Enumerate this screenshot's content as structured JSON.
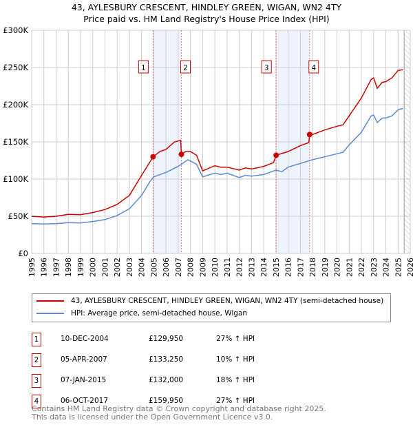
{
  "title": "43, AYLESBURY CRESCENT, HINDLEY GREEN, WIGAN, WN2 4TY",
  "subtitle": "Price paid vs. HM Land Registry's House Price Index (HPI)",
  "chart_data": {
    "type": "line",
    "title": "43, AYLESBURY CRESCENT, HINDLEY GREEN, WIGAN, WN2 4TY",
    "subtitle": "Price paid vs. HM Land Registry's House Price Index (HPI)",
    "xlim": [
      1995,
      2026
    ],
    "ylim": [
      0,
      300000
    ],
    "xticks": [
      "1995",
      "1996",
      "1997",
      "1998",
      "1999",
      "2000",
      "2001",
      "2002",
      "2003",
      "2004",
      "2005",
      "2006",
      "2007",
      "2008",
      "2009",
      "2010",
      "2011",
      "2012",
      "2013",
      "2014",
      "2015",
      "2016",
      "2017",
      "2018",
      "2019",
      "2020",
      "2021",
      "2022",
      "2023",
      "2024",
      "2025",
      "2026"
    ],
    "yticks": [
      {
        "v": 0,
        "l": "£0"
      },
      {
        "v": 50000,
        "l": "£50K"
      },
      {
        "v": 100000,
        "l": "£100K"
      },
      {
        "v": 150000,
        "l": "£150K"
      },
      {
        "v": 200000,
        "l": "£200K"
      },
      {
        "v": 250000,
        "l": "£250K"
      },
      {
        "v": 300000,
        "l": "£300K"
      }
    ],
    "grid": true,
    "shaded_ranges": [
      [
        2004.94,
        2007.26
      ],
      [
        2015.02,
        2017.76
      ]
    ],
    "forecast_from": 2025.5,
    "series": [
      {
        "name": "43, AYLESBURY CRESCENT, HINDLEY GREEN, WIGAN, WN2 4TY (semi-detached house)",
        "color": "#cc0000",
        "x": [
          1995,
          1996,
          1997,
          1998,
          1999,
          2000,
          2001,
          2002,
          2003,
          2004,
          2004.94,
          2005.5,
          2006,
          2006.7,
          2007.2,
          2007.26,
          2007.6,
          2008,
          2008.5,
          2009,
          2010,
          2010.5,
          2011,
          2012,
          2012.5,
          2013,
          2014,
          2014.8,
          2015.02,
          2016,
          2017,
          2017.7,
          2017.76,
          2018,
          2019,
          2020,
          2020.5,
          2021,
          2022,
          2022.8,
          2023,
          2023.3,
          2023.7,
          2024,
          2024.5,
          2025,
          2025.4
        ],
        "y": [
          50000,
          49000,
          50000,
          52500,
          52000,
          55000,
          59000,
          66000,
          78000,
          105000,
          129950,
          137000,
          140000,
          150000,
          152000,
          133250,
          137000,
          137000,
          132000,
          111000,
          118000,
          116000,
          116000,
          112000,
          115000,
          113500,
          117000,
          122000,
          132000,
          137000,
          145000,
          149000,
          159950,
          160000,
          166000,
          171000,
          173000,
          185000,
          209000,
          234000,
          236000,
          222000,
          230000,
          231000,
          236000,
          246000,
          247000
        ]
      },
      {
        "name": "HPI: Average price, semi-detached house, Wigan",
        "color": "#5b8ad0",
        "x": [
          1995,
          1996,
          1997,
          1998,
          1999,
          2000,
          2001,
          2002,
          2003,
          2004,
          2004.7,
          2005,
          2006,
          2007,
          2007.8,
          2008.5,
          2009,
          2010,
          2010.5,
          2011,
          2012,
          2012.5,
          2013,
          2014,
          2015,
          2015.5,
          2016,
          2017,
          2018,
          2019,
          2020,
          2020.5,
          2021,
          2022,
          2022.8,
          2023,
          2023.3,
          2023.7,
          2024,
          2024.5,
          2025,
          2025.4
        ],
        "y": [
          40000,
          39500,
          40000,
          41500,
          41000,
          43000,
          45500,
          51000,
          60000,
          78000,
          97000,
          103000,
          109000,
          117000,
          126000,
          120000,
          103000,
          108000,
          106000,
          108000,
          102000,
          105000,
          104000,
          106000,
          112000,
          110000,
          116000,
          121000,
          126000,
          130000,
          134000,
          136000,
          146000,
          163000,
          185000,
          186000,
          176000,
          182000,
          182000,
          185000,
          193000,
          195000
        ]
      }
    ],
    "sales": [
      {
        "label": "1",
        "x": 2004.94,
        "y": 129950
      },
      {
        "label": "2",
        "x": 2007.26,
        "y": 133250
      },
      {
        "label": "3",
        "x": 2015.02,
        "y": 132000
      },
      {
        "label": "4",
        "x": 2017.76,
        "y": 159950
      }
    ]
  },
  "legend": {
    "property": "43, AYLESBURY CRESCENT, HINDLEY GREEN, WIGAN, WN2 4TY (semi-detached house)",
    "hpi": "HPI: Average price, semi-detached house, Wigan"
  },
  "transactions": [
    {
      "num": "1",
      "date": "10-DEC-2004",
      "price": "£129,950",
      "hpi": "27% ↑ HPI"
    },
    {
      "num": "2",
      "date": "05-APR-2007",
      "price": "£133,250",
      "hpi": "10% ↑ HPI"
    },
    {
      "num": "3",
      "date": "07-JAN-2015",
      "price": "£132,000",
      "hpi": "18% ↑ HPI"
    },
    {
      "num": "4",
      "date": "06-OCT-2017",
      "price": "£159,950",
      "hpi": "27% ↑ HPI"
    }
  ],
  "footer": {
    "line1": "Contains HM Land Registry data © Crown copyright and database right 2025.",
    "line2": "This data is licensed under the Open Government Licence v3.0."
  }
}
